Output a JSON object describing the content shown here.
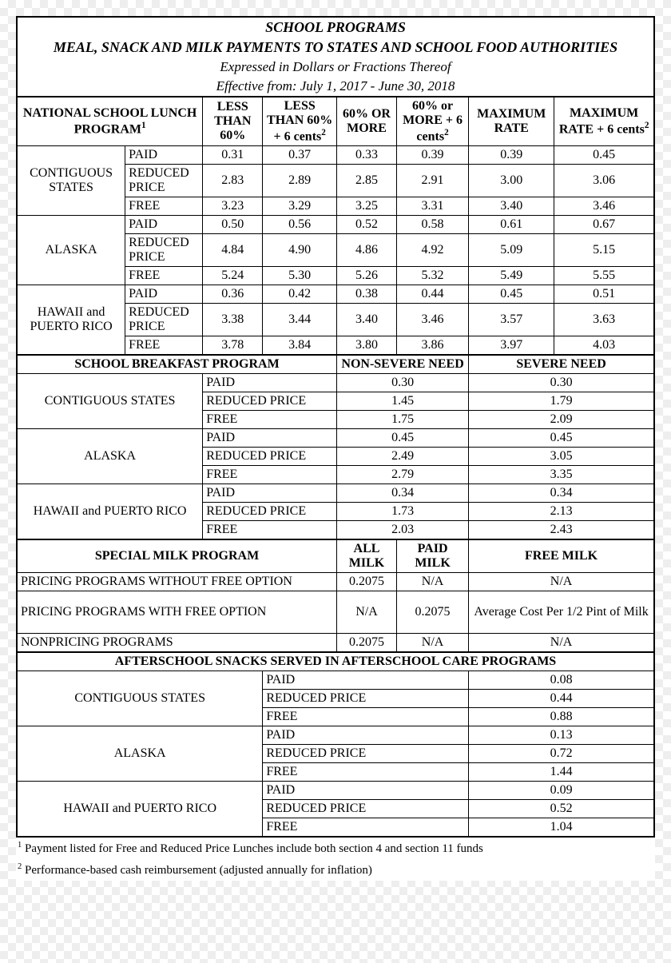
{
  "header": {
    "title1": "SCHOOL PROGRAMS",
    "title2": "MEAL, SNACK AND MILK PAYMENTS TO STATES AND SCHOOL FOOD AUTHORITIES",
    "sub1": "Expressed in Dollars or Fractions Thereof",
    "sub2": "Effective from: July 1, 2017 - June 30, 2018"
  },
  "nslp": {
    "title": "NATIONAL SCHOOL LUNCH PROGRAM",
    "cols": [
      "LESS THAN 60%",
      "LESS THAN 60% + 6 cents",
      "60% OR MORE",
      "60% or MORE + 6 cents",
      "MAXIMUM RATE",
      "MAXIMUM RATE + 6 cents"
    ],
    "regions": [
      {
        "name": "CONTIGUOUS STATES",
        "rows": [
          {
            "type": "PAID",
            "v": [
              "0.31",
              "0.37",
              "0.33",
              "0.39",
              "0.39",
              "0.45"
            ]
          },
          {
            "type": "REDUCED PRICE",
            "v": [
              "2.83",
              "2.89",
              "2.85",
              "2.91",
              "3.00",
              "3.06"
            ]
          },
          {
            "type": "FREE",
            "v": [
              "3.23",
              "3.29",
              "3.25",
              "3.31",
              "3.40",
              "3.46"
            ]
          }
        ]
      },
      {
        "name": "ALASKA",
        "rows": [
          {
            "type": "PAID",
            "v": [
              "0.50",
              "0.56",
              "0.52",
              "0.58",
              "0.61",
              "0.67"
            ]
          },
          {
            "type": "REDUCED PRICE",
            "v": [
              "4.84",
              "4.90",
              "4.86",
              "4.92",
              "5.09",
              "5.15"
            ]
          },
          {
            "type": "FREE",
            "v": [
              "5.24",
              "5.30",
              "5.26",
              "5.32",
              "5.49",
              "5.55"
            ]
          }
        ]
      },
      {
        "name": "HAWAII and PUERTO RICO",
        "rows": [
          {
            "type": "PAID",
            "v": [
              "0.36",
              "0.42",
              "0.38",
              "0.44",
              "0.45",
              "0.51"
            ]
          },
          {
            "type": "REDUCED PRICE",
            "v": [
              "3.38",
              "3.44",
              "3.40",
              "3.46",
              "3.57",
              "3.63"
            ]
          },
          {
            "type": "FREE",
            "v": [
              "3.78",
              "3.84",
              "3.80",
              "3.86",
              "3.97",
              "4.03"
            ]
          }
        ]
      }
    ]
  },
  "sbp": {
    "title": "SCHOOL BREAKFAST PROGRAM",
    "cols": [
      "NON-SEVERE NEED",
      "SEVERE NEED"
    ],
    "regions": [
      {
        "name": "CONTIGUOUS  STATES",
        "rows": [
          {
            "type": "PAID",
            "v": [
              "0.30",
              "0.30"
            ]
          },
          {
            "type": "REDUCED PRICE",
            "v": [
              "1.45",
              "1.79"
            ]
          },
          {
            "type": "FREE",
            "v": [
              "1.75",
              "2.09"
            ]
          }
        ]
      },
      {
        "name": "ALASKA",
        "rows": [
          {
            "type": "PAID",
            "v": [
              "0.45",
              "0.45"
            ]
          },
          {
            "type": "REDUCED PRICE",
            "v": [
              "2.49",
              "3.05"
            ]
          },
          {
            "type": "FREE",
            "v": [
              "2.79",
              "3.35"
            ]
          }
        ]
      },
      {
        "name": "HAWAII and PUERTO RICO",
        "rows": [
          {
            "type": "PAID",
            "v": [
              "0.34",
              "0.34"
            ]
          },
          {
            "type": "REDUCED PRICE",
            "v": [
              "1.73",
              "2.13"
            ]
          },
          {
            "type": "FREE",
            "v": [
              "2.03",
              "2.43"
            ]
          }
        ]
      }
    ]
  },
  "smp": {
    "title": "SPECIAL MILK PROGRAM",
    "cols": [
      "ALL MILK",
      "PAID MILK",
      "FREE MILK"
    ],
    "rows": [
      {
        "name": "PRICING PROGRAMS WITHOUT FREE OPTION",
        "v": [
          "0.2075",
          "N/A",
          "N/A"
        ]
      },
      {
        "name": "PRICING PROGRAMS WITH FREE OPTION",
        "v": [
          "N/A",
          "0.2075",
          "Average Cost Per 1/2 Pint of Milk"
        ]
      },
      {
        "name": "NONPRICING PROGRAMS",
        "v": [
          "0.2075",
          "N/A",
          "N/A"
        ]
      }
    ]
  },
  "snacks": {
    "title": "AFTERSCHOOL SNACKS SERVED IN AFTERSCHOOL CARE PROGRAMS",
    "regions": [
      {
        "name": "CONTIGUOUS  STATES",
        "rows": [
          {
            "type": "PAID",
            "v": "0.08"
          },
          {
            "type": "REDUCED PRICE",
            "v": "0.44"
          },
          {
            "type": "FREE",
            "v": "0.88"
          }
        ]
      },
      {
        "name": "ALASKA",
        "rows": [
          {
            "type": "PAID",
            "v": "0.13"
          },
          {
            "type": "REDUCED PRICE",
            "v": "0.72"
          },
          {
            "type": "FREE",
            "v": "1.44"
          }
        ]
      },
      {
        "name": "HAWAII and PUERTO RICO",
        "rows": [
          {
            "type": "PAID",
            "v": "0.09"
          },
          {
            "type": "REDUCED PRICE",
            "v": "0.52"
          },
          {
            "type": "FREE",
            "v": "1.04"
          }
        ]
      }
    ]
  },
  "footnotes": {
    "f1": "Payment listed for Free and Reduced Price Lunches include both section 4 and section 11 funds",
    "f2": "Performance-based cash reimbursement (adjusted annually for inflation)"
  }
}
